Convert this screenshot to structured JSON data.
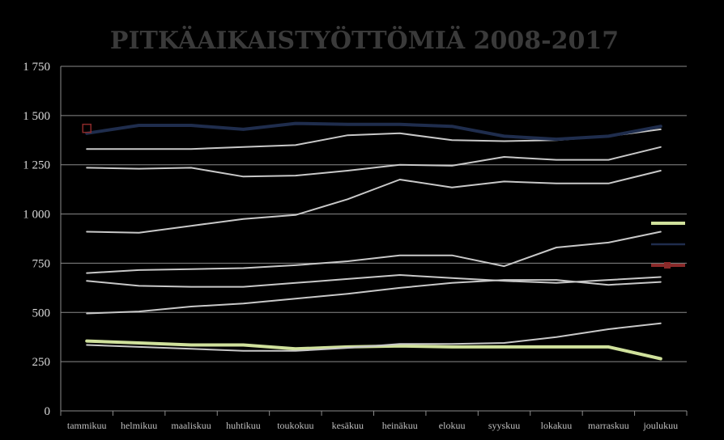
{
  "chart_data": {
    "type": "line",
    "title": "PITKÄAIKAISTYÖTTÖMIÄ 2008-2017",
    "xlabel": "",
    "ylabel": "",
    "categories": [
      "tammikuu",
      "helmikuu",
      "maaliskuu",
      "huhtikuu",
      "toukokuu",
      "kesäkuu",
      "heinäkuu",
      "elokuu",
      "syyskuu",
      "lokakuu",
      "marraskuu",
      "joulukuu"
    ],
    "y_ticks": [
      "0",
      "250",
      "500",
      "750",
      "1 000",
      "1 250",
      "1 500",
      "1 750"
    ],
    "ylim": [
      0,
      1750
    ],
    "grid": true,
    "legend": "right",
    "series": [
      {
        "color": "#d0e19c",
        "width": 4,
        "values": [
          355,
          345,
          335,
          335,
          315,
          325,
          330,
          325,
          325,
          325,
          325,
          265
        ]
      },
      {
        "color": "#c8c8c8",
        "width": 2,
        "values": [
          335,
          325,
          315,
          305,
          305,
          320,
          340,
          340,
          345,
          375,
          415,
          445
        ]
      },
      {
        "color": "#c8c8c8",
        "width": 2,
        "values": [
          495,
          505,
          530,
          545,
          570,
          595,
          625,
          650,
          665,
          665,
          640,
          655
        ]
      },
      {
        "color": "#c8c8c8",
        "width": 2,
        "values": [
          660,
          635,
          630,
          630,
          650,
          670,
          690,
          675,
          660,
          650,
          665,
          680
        ]
      },
      {
        "color": "#c8c8c8",
        "width": 2,
        "values": [
          700,
          715,
          720,
          725,
          740,
          760,
          790,
          790,
          735,
          830,
          855,
          910
        ]
      },
      {
        "color": "#c8c8c8",
        "width": 2,
        "values": [
          910,
          905,
          940,
          975,
          995,
          1075,
          1175,
          1135,
          1165,
          1155,
          1155,
          1220
        ]
      },
      {
        "color": "#c8c8c8",
        "width": 2,
        "values": [
          1235,
          1230,
          1235,
          1190,
          1195,
          1220,
          1250,
          1245,
          1290,
          1275,
          1275,
          1340
        ]
      },
      {
        "color": "#c8c8c8",
        "width": 2,
        "values": [
          1330,
          1330,
          1330,
          1340,
          1350,
          1400,
          1410,
          1375,
          1370,
          1375,
          1395,
          1430
        ]
      },
      {
        "color": "#1f2d4d",
        "width": 4,
        "values": [
          1410,
          1450,
          1450,
          1430,
          1460,
          1455,
          1455,
          1445,
          1395,
          1380,
          1395,
          1445
        ]
      }
    ],
    "markers": [
      {
        "category_index": 0,
        "value": 1435,
        "color": "#8b2a2a"
      }
    ],
    "legend_entries": [
      {
        "color": "#d0e19c"
      },
      {
        "color": "#1f2d4d"
      },
      {
        "color": "#8b2a2a"
      }
    ]
  }
}
